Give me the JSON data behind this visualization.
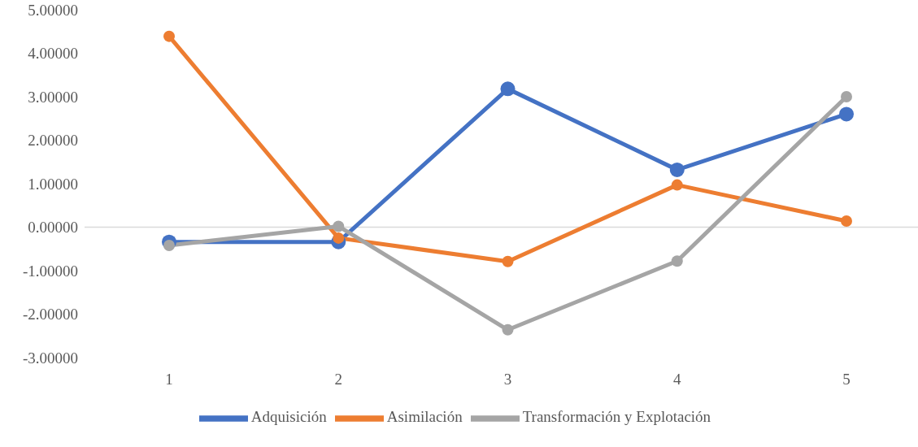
{
  "chart_data": {
    "type": "line",
    "categories": [
      "1",
      "2",
      "3",
      "4",
      "5"
    ],
    "series": [
      {
        "name": "Adquisición",
        "color": "#4472c4",
        "values": [
          -0.34,
          -0.34,
          3.18,
          1.32,
          2.6
        ]
      },
      {
        "name": "Asimilación",
        "color": "#ed7d31",
        "values": [
          4.39,
          -0.25,
          -0.79,
          0.97,
          0.14
        ]
      },
      {
        "name": "Transformación y Explotación",
        "color": "#a5a5a5",
        "values": [
          -0.42,
          0.02,
          -2.36,
          -0.78,
          3.0
        ]
      }
    ],
    "ylim": [
      -3,
      5
    ],
    "yticks": [
      {
        "value": -3,
        "label": "-3.00000"
      },
      {
        "value": -2,
        "label": "-2.00000"
      },
      {
        "value": -1,
        "label": "-1.00000"
      },
      {
        "value": 0,
        "label": "0.00000"
      },
      {
        "value": 1,
        "label": "1.00000"
      },
      {
        "value": 2,
        "label": "2.00000"
      },
      {
        "value": 3,
        "label": "3.00000"
      },
      {
        "value": 4,
        "label": "4.00000"
      },
      {
        "value": 5,
        "label": "5.00000"
      }
    ],
    "ref_lines": [
      {
        "axis": "y",
        "value": 0,
        "color": "#d9d9d9"
      }
    ],
    "grid": false,
    "legend": "bottom",
    "marker": "circle",
    "line_style": "solid"
  }
}
